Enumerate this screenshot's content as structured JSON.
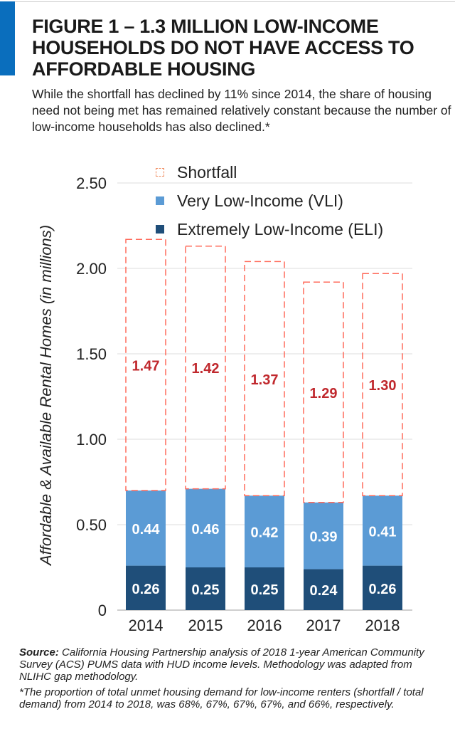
{
  "header": {
    "title": "FIGURE 1 – 1.3 MILLION LOW-INCOME HOUSEHOLDS DO NOT HAVE ACCESS TO AFFORDABLE HOUSING",
    "subtitle": "While the shortfall has declined by 11% since 2014, the share of housing need not being met has remained relatively constant because the number of low-income households has also declined.*"
  },
  "chart_data": {
    "type": "bar",
    "stacked": true,
    "categories": [
      "2014",
      "2015",
      "2016",
      "2017",
      "2018"
    ],
    "series": [
      {
        "name": "Extremely Low-Income (ELI)",
        "values": [
          0.26,
          0.25,
          0.25,
          0.24,
          0.26
        ],
        "color": "#1f4e79",
        "label_color": "#ffffff"
      },
      {
        "name": "Very Low-Income (VLI)",
        "values": [
          0.44,
          0.46,
          0.42,
          0.39,
          0.41
        ],
        "color": "#5b9bd5",
        "label_color": "#ffffff"
      },
      {
        "name": "Shortfall",
        "values": [
          1.47,
          1.42,
          1.37,
          1.29,
          1.3
        ],
        "color": "#ff6b5b",
        "style": "dashed-outline",
        "label_color": "#c0282d"
      }
    ],
    "legend_order": [
      "Shortfall",
      "Very Low-Income (VLI)",
      "Extremely Low-Income (ELI)"
    ],
    "ylabel": "Affordable & Available Rental Homes (in millions)",
    "xlabel": "",
    "ylim": [
      0,
      2.5
    ],
    "yticks": [
      "0",
      "0.50",
      "1.00",
      "1.50",
      "2.00",
      "2.50"
    ],
    "ytick_values": [
      0,
      0.5,
      1,
      1.5,
      2,
      2.5
    ],
    "grid": true,
    "legend_placement": "top-right"
  },
  "footer": {
    "source_label": "Source:",
    "source_text": " California Housing Partnership analysis of 2018 1-year American Community Survey (ACS) PUMS data with HUD income levels. Methodology was adapted from NLIHC gap methodology.",
    "note": "*The proportion of total unmet housing demand for low-income renters (shortfall / total demand) from 2014 to 2018, was 68%, 67%, 67%, 67%, and 66%, respectively."
  }
}
